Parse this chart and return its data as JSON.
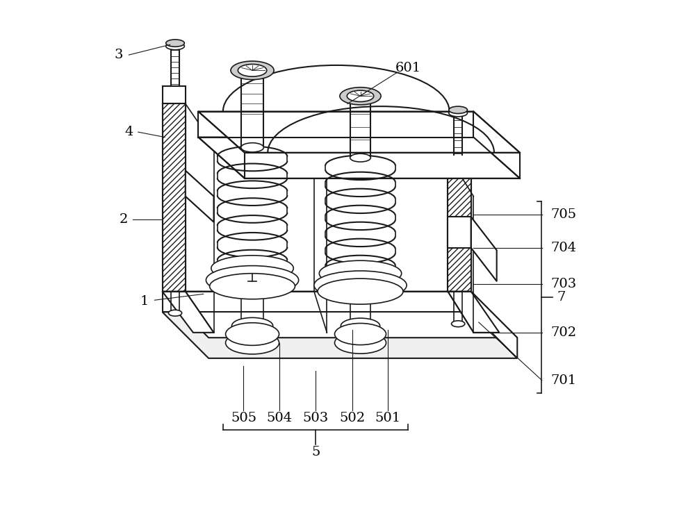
{
  "background_color": "#ffffff",
  "line_color": "#1a1a1a",
  "label_fontsize": 14,
  "figsize": [
    10.0,
    7.43
  ],
  "dpi": 100
}
